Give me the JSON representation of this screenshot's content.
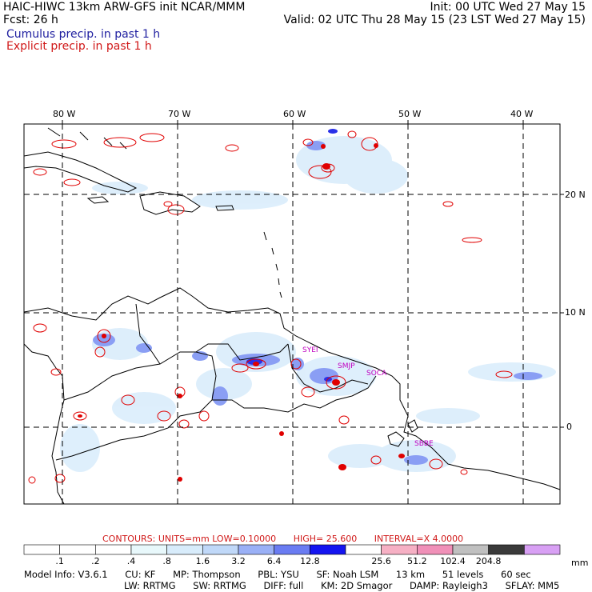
{
  "header": {
    "title": "HAIC-HIWC 13km ARW-GFS init   NCAR/MMM",
    "fcst": "Fcst:   26 h",
    "init": "Init: 00 UTC Wed 27 May 15",
    "valid": "Valid: 02 UTC Thu 28 May 15 (23 LST Wed 27 May 15)"
  },
  "legend": {
    "cumulus": "Cumulus precip. in past 1 h",
    "explicit": "Explicit precip. in past 1 h"
  },
  "map": {
    "lon_labels": [
      "80 W",
      "70 W",
      "60 W",
      "50 W",
      "40 W"
    ],
    "lat_labels": [
      "20 N",
      "10 N",
      "0"
    ],
    "stations": [
      "SYEI",
      "SMJP",
      "SOCA",
      "SBBE"
    ]
  },
  "contours": {
    "label": "CONTOURS:  UNITS=mm  LOW=",
    "low": "0.10000",
    "high_label": "HIGH=",
    "high": "25.600",
    "interval_label": "INTERVAL=X",
    "interval": "4.0000"
  },
  "colorbar": {
    "ticks": [
      ".1",
      ".2",
      ".4",
      ".8",
      "1.6",
      "3.2",
      "6.4",
      "12.8",
      "25.6",
      "51.2",
      "102.4",
      "204.8"
    ],
    "unit": "mm",
    "colors": [
      "#ffffff",
      "#ffffff",
      "#ffffff",
      "#e8f8fb",
      "#d8ecfb",
      "#c0d8f8",
      "#9ab0f6",
      "#6a7cf2",
      "#1414f0",
      "#ffffff",
      "#f6b0c4",
      "#f090b8",
      "#c0c0c0",
      "#3a3a3a",
      "#d8a0f4"
    ]
  },
  "model_info": {
    "line1": [
      "Model Info: V3.6.1",
      "CU: KF",
      "MP: Thompson",
      "PBL: YSU",
      "SF: Noah LSM",
      "13 km",
      "51 levels",
      "60 sec"
    ],
    "line2": [
      "LW: RRTMG",
      "SW: RRTMG",
      "DIFF: full",
      "KM: 2D Smagor",
      "DAMP: Rayleigh3",
      "SFLAY: MM5"
    ]
  }
}
